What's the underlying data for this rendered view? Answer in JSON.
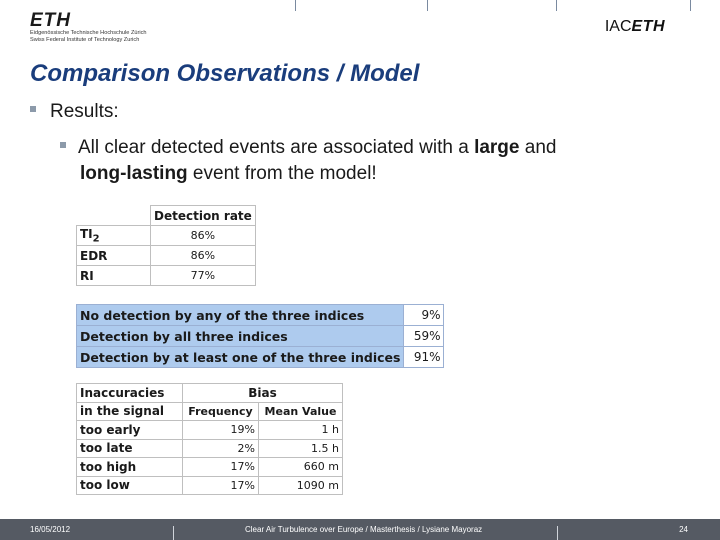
{
  "header": {
    "logo_mark": "ETH",
    "logo_line1": "Eidgenössische Technische Hochschule Zürich",
    "logo_line2": "Swiss Federal Institute of Technology Zurich",
    "iac_prefix": "IAC",
    "iac_suffix": "ETH"
  },
  "slide": {
    "title": "Comparison Observations / Model",
    "bullet1": "Results:",
    "bullet2": {
      "part1": "All clear detected events are associated with a ",
      "bold1": "large",
      "part2": " and",
      "bold2": "long-lasting",
      "part3": " event from the model!"
    }
  },
  "table1": {
    "header": "Detection rate",
    "rows": [
      {
        "label_main": "TI",
        "label_sub": "2",
        "value": "86%"
      },
      {
        "label": "EDR",
        "value": "86%"
      },
      {
        "label": "RI",
        "value": "77%"
      }
    ]
  },
  "table2": {
    "rows": [
      {
        "label": "No detection by any of the three indices",
        "value": "9%"
      },
      {
        "label": "Detection by all three indices",
        "value": "59%"
      },
      {
        "label": "Detection by at least one of the three indices",
        "value": "91%"
      }
    ]
  },
  "table3": {
    "corner_line1": "Inaccuracies",
    "corner_line2": "in the signal",
    "bias_header": "Bias",
    "col1": "Frequency",
    "col2": "Mean Value",
    "rows": [
      {
        "label": "too early",
        "frequency": "19%",
        "mean": "1 h"
      },
      {
        "label": "too late",
        "frequency": "2%",
        "mean": "1.5 h"
      },
      {
        "label": "too high",
        "frequency": "17%",
        "mean": "660 m"
      },
      {
        "label": "too low",
        "frequency": "17%",
        "mean": "1090 m"
      }
    ]
  },
  "footer": {
    "date": "16/05/2012",
    "caption": "Clear Air Turbulence over Europe / Masterthesis / Lysiane Mayoraz",
    "page": "24"
  },
  "colors": {
    "title": "#1a3d7c",
    "table2_fill": "#aecbee",
    "footer_bg": "#555a63"
  }
}
